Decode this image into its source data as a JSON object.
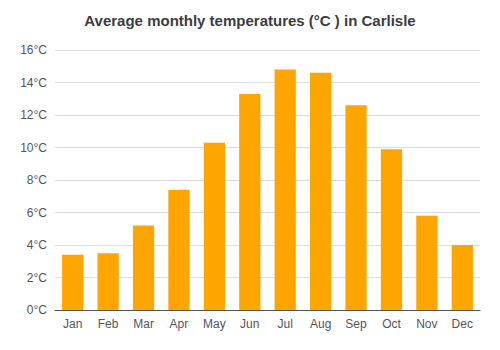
{
  "chart_data": {
    "type": "bar",
    "title": "Average monthly temperatures (°C ) in Carlisle",
    "categories": [
      "Jan",
      "Feb",
      "Mar",
      "Apr",
      "May",
      "Jun",
      "Jul",
      "Aug",
      "Sep",
      "Oct",
      "Nov",
      "Dec"
    ],
    "values": [
      3.4,
      3.5,
      5.2,
      7.4,
      10.3,
      13.3,
      14.8,
      14.6,
      12.6,
      9.9,
      5.8,
      4.0
    ],
    "color": "#FFA500",
    "ylim": [
      0,
      16
    ],
    "yticks": [
      {
        "value": 0,
        "label": "0°C"
      },
      {
        "value": 2,
        "label": "2°C"
      },
      {
        "value": 4,
        "label": "4°C"
      },
      {
        "value": 6,
        "label": "6°C"
      },
      {
        "value": 8,
        "label": "8°C"
      },
      {
        "value": 10,
        "label": "10°C"
      },
      {
        "value": 12,
        "label": "12°C"
      },
      {
        "value": 14,
        "label": "14°C"
      },
      {
        "value": 16,
        "label": "16°C"
      }
    ],
    "grid": true
  }
}
